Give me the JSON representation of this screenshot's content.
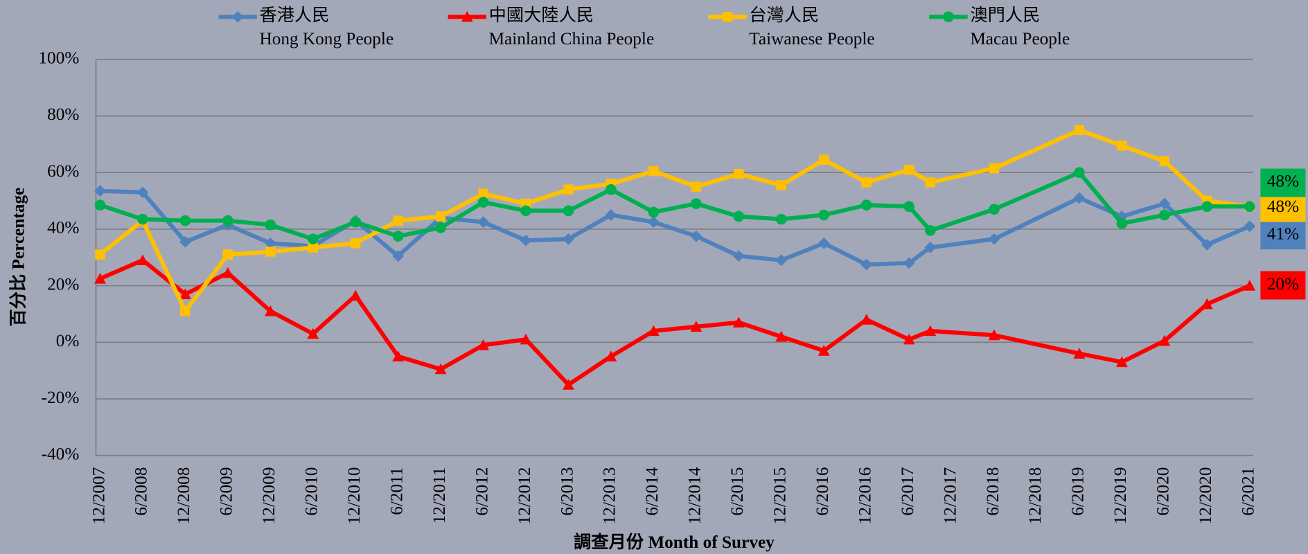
{
  "chart_data": {
    "type": "line",
    "ylabel": "百分比 Percentage",
    "xlabel": "調查月份 Month of Survey",
    "x": [
      "12/2007",
      "6/2008",
      "12/2008",
      "6/2009",
      "12/2009",
      "6/2010",
      "12/2010",
      "6/2011",
      "12/2011",
      "6/2012",
      "12/2012",
      "6/2013",
      "12/2013",
      "6/2014",
      "12/2014",
      "6/2015",
      "12/2015",
      "6/2016",
      "12/2016",
      "6/2017",
      "9/2017",
      "6/2018",
      "6/2019",
      "12/2019",
      "6/2020",
      "12/2020",
      "6/2021"
    ],
    "xlim": [
      "12/2007",
      "6/2021"
    ],
    "xticks": [
      "12/2007",
      "6/2008",
      "12/2008",
      "6/2009",
      "12/2009",
      "6/2010",
      "12/2010",
      "6/2011",
      "12/2011",
      "6/2012",
      "12/2012",
      "6/2013",
      "12/2013",
      "6/2014",
      "12/2014",
      "6/2015",
      "12/2015",
      "6/2016",
      "12/2016",
      "6/2017",
      "12/2017",
      "6/2018",
      "12/2018",
      "6/2019",
      "12/2019",
      "6/2020",
      "12/2020",
      "6/2021"
    ],
    "ylim": [
      -40,
      100
    ],
    "yticks": [
      {
        "value": -40,
        "label": "-40%"
      },
      {
        "value": -20,
        "label": "-20%"
      },
      {
        "value": 0,
        "label": "0%"
      },
      {
        "value": 20,
        "label": "20%"
      },
      {
        "value": 40,
        "label": "40%"
      },
      {
        "value": 60,
        "label": "60%"
      },
      {
        "value": 80,
        "label": "80%"
      },
      {
        "value": 100,
        "label": "100%"
      }
    ],
    "grid": true,
    "series": [
      {
        "name": "香港人民",
        "name_en": "Hong Kong People",
        "color": "#4f81bd",
        "marker": "diamond",
        "values": [
          53.5,
          53,
          35.5,
          41.5,
          35,
          34,
          43,
          30.5,
          44,
          42.5,
          36,
          36.5,
          45,
          42.5,
          37.5,
          30.5,
          29,
          35,
          27.5,
          28,
          33.5,
          36.5,
          51,
          44.5,
          49,
          34.5,
          41
        ],
        "value_labels": [
          null,
          null,
          null,
          null,
          null,
          null,
          null,
          null,
          null,
          null,
          null,
          null,
          null,
          null,
          null,
          null,
          null,
          null,
          null,
          null,
          null,
          null,
          null,
          null,
          null,
          null,
          "41%"
        ]
      },
      {
        "name": "中國大陸人民",
        "name_en": "Mainland China People",
        "color": "#ff0000",
        "marker": "triangle",
        "values": [
          22.5,
          29,
          17,
          24.5,
          11,
          3,
          16.5,
          -5,
          -9.5,
          -1,
          1,
          -15,
          -5,
          4,
          5.5,
          7,
          2,
          -3,
          8,
          1,
          4,
          2.5,
          -4,
          -7,
          0.5,
          13.5,
          20
        ],
        "value_labels": [
          null,
          null,
          null,
          null,
          null,
          null,
          null,
          null,
          null,
          null,
          null,
          null,
          null,
          null,
          null,
          null,
          null,
          null,
          null,
          null,
          null,
          null,
          null,
          null,
          null,
          null,
          "20%"
        ]
      },
      {
        "name": "台灣人民",
        "name_en": "Taiwanese People",
        "color": "#ffc000",
        "marker": "square",
        "values": [
          31,
          43,
          11,
          31,
          32,
          33.5,
          35,
          43,
          44.5,
          52.5,
          49,
          54,
          56,
          60.5,
          55,
          59.5,
          55.5,
          64.5,
          56.5,
          61,
          56.5,
          61.5,
          75,
          69.5,
          64,
          50,
          48
        ],
        "value_labels": [
          null,
          null,
          null,
          null,
          null,
          null,
          null,
          null,
          null,
          null,
          null,
          null,
          null,
          null,
          null,
          null,
          null,
          null,
          null,
          null,
          null,
          null,
          null,
          null,
          null,
          null,
          "48%"
        ]
      },
      {
        "name": "澳門人民",
        "name_en": "Macau People",
        "color": "#00b050",
        "marker": "circle",
        "values": [
          48.5,
          43.5,
          43,
          43,
          41.5,
          36.5,
          42.5,
          37.5,
          40.5,
          49.5,
          46.5,
          46.5,
          54,
          46,
          49,
          44.5,
          43.5,
          45,
          48.5,
          48,
          39.5,
          47,
          60,
          42,
          45,
          48,
          48
        ],
        "value_labels": [
          null,
          null,
          null,
          null,
          null,
          null,
          null,
          null,
          null,
          null,
          null,
          null,
          null,
          null,
          null,
          null,
          null,
          null,
          null,
          null,
          null,
          null,
          null,
          null,
          null,
          null,
          "48%"
        ]
      }
    ]
  }
}
